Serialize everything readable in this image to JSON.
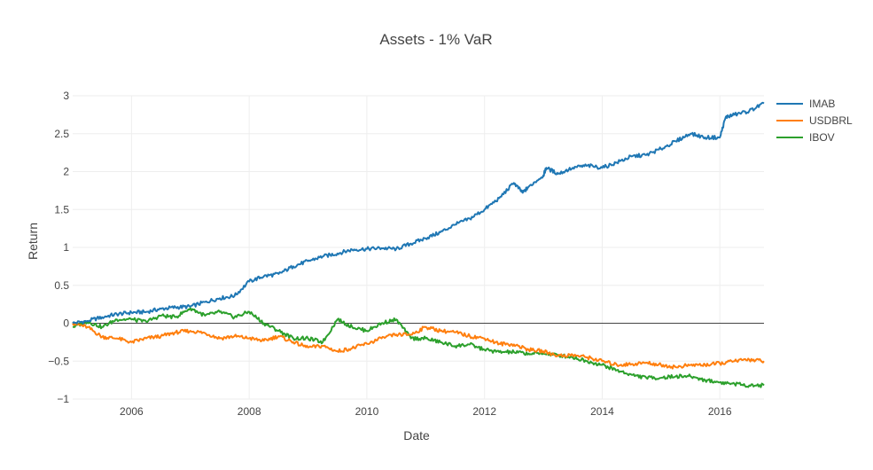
{
  "chart_data": {
    "type": "line",
    "title": "Assets - 1% VaR",
    "xlabel": "Date",
    "ylabel": "Return",
    "xlim": [
      2005.0,
      2016.75
    ],
    "ylim": [
      -1.0,
      3.0
    ],
    "x_ticks": [
      {
        "value": 2006,
        "label": "2006"
      },
      {
        "value": 2008,
        "label": "2008"
      },
      {
        "value": 2010,
        "label": "2010"
      },
      {
        "value": 2012,
        "label": "2012"
      },
      {
        "value": 2014,
        "label": "2014"
      },
      {
        "value": 2016,
        "label": "2016"
      }
    ],
    "y_ticks": [
      {
        "value": -1,
        "label": "−1"
      },
      {
        "value": -0.5,
        "label": "−0.5"
      },
      {
        "value": 0,
        "label": "0"
      },
      {
        "value": 0.5,
        "label": "0.5"
      },
      {
        "value": 1,
        "label": "1"
      },
      {
        "value": 1.5,
        "label": "1.5"
      },
      {
        "value": 2,
        "label": "2"
      },
      {
        "value": 2.5,
        "label": "2.5"
      },
      {
        "value": 3,
        "label": "3"
      }
    ],
    "grid": true,
    "zero_line": true,
    "legend_position": "top-right",
    "series": [
      {
        "name": "IMAB",
        "color": "#1f77b4",
        "x": [
          2005.0,
          2005.25,
          2005.5,
          2005.75,
          2006.0,
          2006.25,
          2006.5,
          2006.75,
          2007.0,
          2007.25,
          2007.5,
          2007.75,
          2008.0,
          2008.25,
          2008.5,
          2008.75,
          2009.0,
          2009.25,
          2009.5,
          2009.75,
          2010.0,
          2010.25,
          2010.5,
          2010.75,
          2011.0,
          2011.25,
          2011.5,
          2011.75,
          2012.0,
          2012.25,
          2012.5,
          2012.65,
          2012.75,
          2013.0,
          2013.05,
          2013.25,
          2013.5,
          2013.75,
          2014.0,
          2014.25,
          2014.5,
          2014.75,
          2015.0,
          2015.25,
          2015.5,
          2015.75,
          2016.0,
          2016.1,
          2016.25,
          2016.5,
          2016.75
        ],
        "y": [
          0.0,
          0.03,
          0.08,
          0.12,
          0.14,
          0.15,
          0.19,
          0.21,
          0.22,
          0.28,
          0.33,
          0.36,
          0.55,
          0.62,
          0.65,
          0.75,
          0.82,
          0.88,
          0.92,
          0.97,
          0.98,
          0.99,
          0.98,
          1.05,
          1.12,
          1.2,
          1.3,
          1.38,
          1.5,
          1.65,
          1.85,
          1.72,
          1.8,
          1.95,
          2.05,
          1.97,
          2.05,
          2.08,
          2.05,
          2.12,
          2.2,
          2.22,
          2.3,
          2.4,
          2.5,
          2.45,
          2.45,
          2.72,
          2.75,
          2.8,
          2.9
        ]
      },
      {
        "name": "USDBRL",
        "color": "#ff7f0e",
        "x": [
          2005.0,
          2005.25,
          2005.5,
          2005.75,
          2006.0,
          2006.25,
          2006.5,
          2006.75,
          2007.0,
          2007.25,
          2007.5,
          2007.75,
          2008.0,
          2008.25,
          2008.5,
          2008.75,
          2009.0,
          2009.25,
          2009.5,
          2009.75,
          2010.0,
          2010.25,
          2010.5,
          2010.75,
          2011.0,
          2011.25,
          2011.5,
          2011.75,
          2012.0,
          2012.25,
          2012.5,
          2012.75,
          2013.0,
          2013.25,
          2013.5,
          2013.75,
          2014.0,
          2014.25,
          2014.5,
          2014.75,
          2015.0,
          2015.25,
          2015.5,
          2015.75,
          2016.0,
          2016.25,
          2016.5,
          2016.75
        ],
        "y": [
          0.0,
          -0.05,
          -0.18,
          -0.2,
          -0.25,
          -0.2,
          -0.17,
          -0.12,
          -0.1,
          -0.13,
          -0.2,
          -0.17,
          -0.2,
          -0.23,
          -0.17,
          -0.25,
          -0.32,
          -0.3,
          -0.37,
          -0.33,
          -0.27,
          -0.2,
          -0.15,
          -0.15,
          -0.05,
          -0.1,
          -0.12,
          -0.17,
          -0.2,
          -0.27,
          -0.28,
          -0.35,
          -0.37,
          -0.43,
          -0.42,
          -0.45,
          -0.5,
          -0.55,
          -0.54,
          -0.52,
          -0.55,
          -0.58,
          -0.55,
          -0.55,
          -0.53,
          -0.5,
          -0.48,
          -0.5
        ]
      },
      {
        "name": "IBOV",
        "color": "#2ca02c",
        "x": [
          2005.0,
          2005.25,
          2005.5,
          2005.75,
          2006.0,
          2006.25,
          2006.5,
          2006.75,
          2007.0,
          2007.25,
          2007.5,
          2007.75,
          2008.0,
          2008.25,
          2008.5,
          2008.75,
          2009.0,
          2009.25,
          2009.5,
          2009.75,
          2010.0,
          2010.25,
          2010.5,
          2010.75,
          2011.0,
          2011.25,
          2011.5,
          2011.75,
          2012.0,
          2012.25,
          2012.5,
          2012.75,
          2013.0,
          2013.25,
          2013.5,
          2013.75,
          2014.0,
          2014.25,
          2014.5,
          2014.75,
          2015.0,
          2015.25,
          2015.5,
          2015.75,
          2016.0,
          2016.25,
          2016.5,
          2016.75
        ],
        "y": [
          -0.05,
          0.02,
          -0.05,
          0.05,
          0.05,
          0.02,
          0.1,
          0.08,
          0.2,
          0.1,
          0.15,
          0.08,
          0.15,
          0.0,
          -0.1,
          -0.2,
          -0.2,
          -0.25,
          0.05,
          -0.05,
          -0.1,
          0.0,
          0.05,
          -0.2,
          -0.2,
          -0.25,
          -0.3,
          -0.28,
          -0.35,
          -0.38,
          -0.38,
          -0.4,
          -0.4,
          -0.42,
          -0.45,
          -0.5,
          -0.55,
          -0.62,
          -0.68,
          -0.72,
          -0.72,
          -0.7,
          -0.7,
          -0.75,
          -0.78,
          -0.8,
          -0.82,
          -0.82
        ]
      }
    ]
  }
}
